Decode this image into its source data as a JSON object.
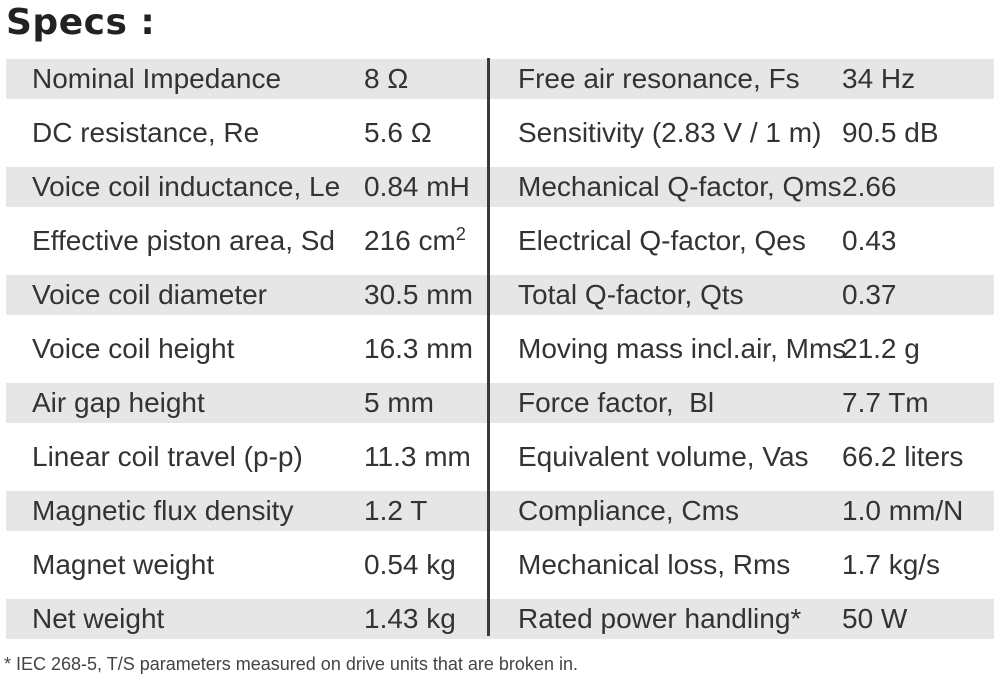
{
  "title": "Specs :",
  "rows": [
    {
      "label_left": "Nominal Impedance",
      "value_left": "8 Ω",
      "label_right": "Free air resonance, Fs",
      "value_right": "34 Hz"
    },
    {
      "label_left": "DC resistance, Re",
      "value_left": "5.6 Ω",
      "label_right": "Sensitivity (2.83 V / 1 m)",
      "value_right": "90.5 dB"
    },
    {
      "label_left": "Voice coil inductance, Le",
      "value_left": "0.84 mH",
      "label_right": "Mechanical Q-factor, Qms",
      "value_right": "2.66"
    },
    {
      "label_left": "Effective piston area, Sd",
      "value_left": "216 cm",
      "value_left_sup": "2",
      "label_right": "Electrical Q-factor, Qes",
      "value_right": "0.43"
    },
    {
      "label_left": "Voice coil diameter",
      "value_left": "30.5 mm",
      "label_right": "Total Q-factor, Qts",
      "value_right": "0.37"
    },
    {
      "label_left": "Voice coil height",
      "value_left": "16.3 mm",
      "label_right": "Moving mass incl.air, Mms",
      "value_right": "21.2 g"
    },
    {
      "label_left": "Air gap height",
      "value_left": "5 mm",
      "label_right": "Force factor,  Bl",
      "value_right": "7.7 Tm"
    },
    {
      "label_left": "Linear coil travel (p-p)",
      "value_left": "11.3 mm",
      "label_right": "Equivalent volume, Vas",
      "value_right": "66.2 liters"
    },
    {
      "label_left": "Magnetic flux density",
      "value_left": "1.2 T",
      "label_right": "Compliance, Cms",
      "value_right": "1.0 mm/N"
    },
    {
      "label_left": "Magnet weight",
      "value_left": "0.54 kg",
      "label_right": "Mechanical loss, Rms",
      "value_right": "1.7 kg/s"
    },
    {
      "label_left": "Net weight",
      "value_left": "1.43 kg",
      "label_right": "Rated power handling*",
      "value_right": "50 W"
    }
  ],
  "footnote": "* IEC 268-5, T/S parameters measured on drive units that are broken in.",
  "colors": {
    "shaded_row": "#e6e6e6",
    "divider": "#3a3a3a",
    "text": "#333333"
  }
}
